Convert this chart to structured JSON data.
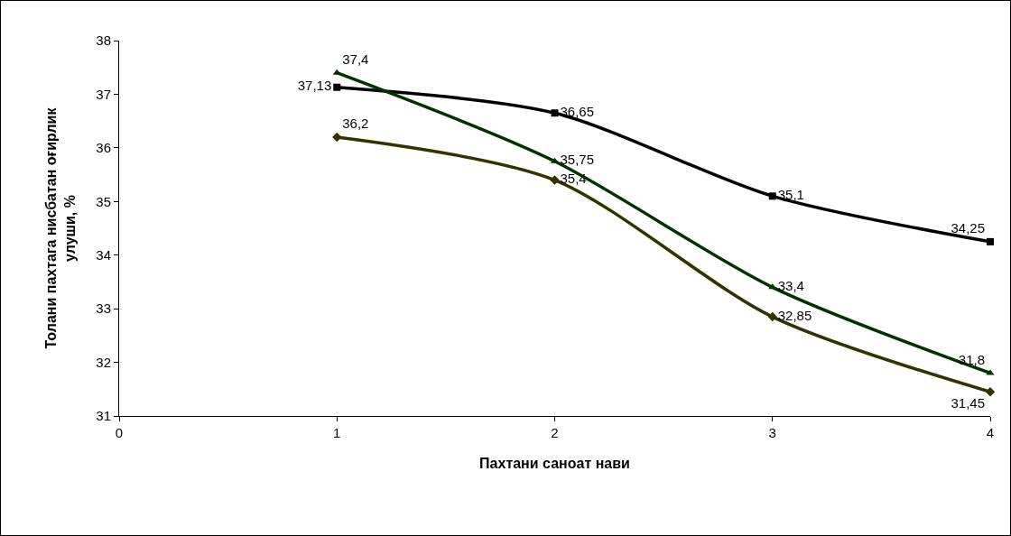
{
  "chart_data": {
    "type": "line",
    "xlabel": "Пахтани саноат нави",
    "ylabel": "Толани пахтага нисбатан оғирлик улуши, %",
    "xlim": [
      0,
      4
    ],
    "xticks": [
      0,
      1,
      2,
      3,
      4
    ],
    "ylim": [
      31,
      38
    ],
    "yticks": [
      31,
      32,
      33,
      34,
      35,
      36,
      37,
      38
    ],
    "grid": false,
    "line_style": "solid",
    "x": [
      1,
      2,
      3,
      4
    ],
    "series": [
      {
        "color": "#333300",
        "marker": "diamond",
        "values": [
          36.2,
          35.4,
          32.85,
          31.45
        ],
        "value_labels": [
          "36,2",
          "35,4",
          "32,85",
          "31,45"
        ]
      },
      {
        "color": "#000000",
        "marker": "square",
        "values": [
          37.13,
          36.65,
          35.1,
          34.25
        ],
        "value_labels": [
          "37,13",
          "36,65",
          "35,1",
          "34,25"
        ]
      },
      {
        "color": "#003300",
        "marker": "triangle",
        "values": [
          37.4,
          35.75,
          33.4,
          31.8
        ],
        "value_labels": [
          "37,4",
          "35,75",
          "33,4",
          "31,8"
        ]
      }
    ]
  }
}
